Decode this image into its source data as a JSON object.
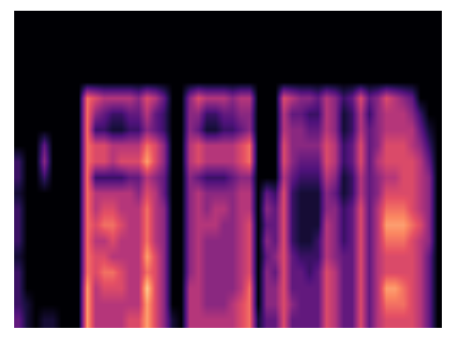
{
  "chart_data": {
    "type": "heatmap",
    "color": "magma",
    "tick_labels": false,
    "zlim": [
      0,
      10
    ],
    "cells": [
      [
        0,
        0,
        0,
        0,
        0,
        0,
        0,
        0,
        0,
        0,
        0,
        0,
        0,
        0,
        0,
        0,
        0,
        0,
        0,
        0,
        0,
        0,
        0,
        0,
        0,
        0,
        0,
        0,
        0,
        0,
        0,
        0,
        0,
        0,
        0,
        0,
        0,
        0,
        0,
        0,
        0,
        0,
        0,
        0,
        0,
        0,
        0,
        0,
        0,
        0
      ],
      [
        0,
        0,
        0,
        0,
        0,
        0,
        0,
        0,
        0,
        0,
        0,
        0,
        0,
        0,
        0,
        0,
        0,
        0,
        0,
        0,
        0,
        0,
        0,
        0,
        0,
        0,
        0,
        0,
        0,
        0,
        0,
        0,
        0,
        0,
        0,
        0,
        0,
        0,
        0,
        0,
        0,
        0,
        0,
        0,
        0,
        0,
        0,
        0,
        0,
        0
      ],
      [
        0,
        0,
        0,
        0,
        0,
        0,
        0,
        0,
        0,
        0,
        0,
        0,
        0,
        0,
        0,
        0,
        0,
        0,
        0,
        0,
        0,
        0,
        0,
        0,
        0,
        0,
        0,
        0,
        0,
        0,
        0,
        0,
        0,
        0,
        0,
        0,
        0,
        0,
        0,
        0,
        0,
        0,
        0,
        0,
        0,
        0,
        0,
        0,
        0,
        0
      ],
      [
        0,
        0,
        0,
        0,
        0,
        0,
        0,
        0,
        0,
        0,
        0,
        0,
        0,
        0,
        0,
        0,
        0,
        0,
        0,
        0,
        0,
        0,
        0,
        0,
        0,
        0,
        0,
        0,
        0,
        0,
        0,
        0,
        0,
        0,
        0,
        0,
        0,
        0,
        0,
        0,
        0,
        0,
        0,
        0,
        0,
        0,
        0,
        0,
        0,
        0
      ],
      [
        0,
        0,
        0,
        0,
        0,
        0,
        0,
        0,
        0,
        0,
        0,
        0,
        0,
        0,
        0,
        0,
        0,
        0,
        0,
        0,
        0,
        0,
        0,
        0,
        0,
        0,
        0,
        0,
        0,
        0,
        0,
        0,
        0,
        0,
        0,
        0,
        0,
        0,
        0,
        0,
        0,
        0,
        0,
        0,
        0,
        0,
        0,
        0,
        0,
        0
      ],
      [
        0,
        0,
        0,
        0,
        0,
        0,
        0,
        0,
        7,
        6,
        5,
        5,
        5,
        5,
        4,
        6,
        5,
        3,
        0,
        0,
        4,
        6,
        5,
        5,
        5,
        4,
        5,
        5,
        0,
        0,
        0,
        6,
        5,
        4,
        4,
        3,
        5,
        4,
        2,
        3,
        6,
        3,
        4,
        6,
        5,
        4,
        3,
        0,
        0,
        0
      ],
      [
        0,
        0,
        0,
        0,
        0,
        0,
        0,
        0,
        7,
        4,
        3,
        2,
        2,
        3,
        3,
        5,
        3,
        2,
        0,
        0,
        4,
        4,
        2,
        2,
        3,
        3,
        4,
        4,
        0,
        0,
        0,
        5,
        3,
        3,
        2,
        2,
        5,
        4,
        1,
        2,
        5,
        2,
        4,
        5,
        5,
        5,
        4,
        2,
        0,
        0
      ],
      [
        0,
        0,
        0,
        0,
        0,
        0,
        0,
        0,
        7,
        2,
        2,
        1,
        1,
        2,
        2,
        4,
        3,
        2,
        0,
        0,
        4,
        3,
        1,
        1,
        2,
        2,
        3,
        4,
        0,
        0,
        0,
        5,
        4,
        4,
        3,
        3,
        5,
        4,
        1,
        2,
        5,
        3,
        4,
        5,
        5,
        5,
        5,
        3,
        1,
        0
      ],
      [
        0,
        0,
        0,
        3,
        0,
        0,
        0,
        0,
        7,
        6,
        6,
        5,
        5,
        5,
        5,
        7,
        6,
        4,
        0,
        0,
        5,
        6,
        5,
        5,
        5,
        5,
        6,
        7,
        0,
        0,
        0,
        6,
        4,
        4,
        4,
        4,
        6,
        5,
        2,
        3,
        6,
        3,
        4,
        6,
        6,
        6,
        5,
        4,
        2,
        0
      ],
      [
        2,
        0,
        0,
        4,
        0,
        0,
        0,
        0,
        7,
        6,
        6,
        5,
        6,
        6,
        6,
        8,
        6,
        4,
        0,
        0,
        5,
        6,
        5,
        5,
        5,
        5,
        6,
        7,
        0,
        0,
        0,
        6,
        4,
        3,
        3,
        3,
        6,
        5,
        2,
        3,
        6,
        3,
        5,
        6,
        6,
        6,
        6,
        5,
        3,
        0
      ],
      [
        2,
        0,
        0,
        2,
        0,
        0,
        0,
        0,
        7,
        2,
        2,
        2,
        2,
        3,
        3,
        5,
        4,
        3,
        0,
        0,
        4,
        3,
        2,
        2,
        2,
        3,
        4,
        4,
        0,
        0,
        0,
        5,
        3,
        2,
        2,
        2,
        5,
        4,
        1,
        2,
        5,
        3,
        4,
        5,
        5,
        6,
        6,
        5,
        4,
        0
      ],
      [
        1,
        0,
        0,
        0,
        0,
        0,
        0,
        0,
        7,
        5,
        5,
        5,
        5,
        5,
        4,
        6,
        5,
        3,
        0,
        0,
        4,
        5,
        4,
        4,
        4,
        4,
        5,
        5,
        0,
        3,
        2,
        6,
        2,
        1,
        1,
        1,
        4,
        3,
        1,
        2,
        5,
        3,
        4,
        6,
        6,
        6,
        6,
        5,
        4,
        0
      ],
      [
        2,
        0,
        0,
        0,
        0,
        0,
        0,
        0,
        7,
        5,
        6,
        6,
        5,
        5,
        5,
        7,
        5,
        4,
        0,
        0,
        4,
        5,
        4,
        5,
        5,
        4,
        5,
        5,
        0,
        4,
        3,
        6,
        2,
        1,
        1,
        1,
        4,
        4,
        2,
        3,
        6,
        3,
        5,
        7,
        7,
        7,
        6,
        5,
        4,
        0
      ],
      [
        2,
        0,
        0,
        0,
        0,
        0,
        0,
        0,
        7,
        6,
        7,
        7,
        6,
        5,
        5,
        7,
        5,
        4,
        0,
        0,
        4,
        5,
        5,
        5,
        4,
        4,
        5,
        6,
        0,
        3,
        3,
        6,
        2,
        1,
        1,
        1,
        5,
        4,
        2,
        3,
        6,
        3,
        5,
        8,
        8,
        8,
        7,
        6,
        4,
        0
      ],
      [
        2,
        0,
        0,
        0,
        0,
        0,
        0,
        0,
        7,
        5,
        5,
        6,
        5,
        5,
        5,
        7,
        5,
        4,
        0,
        0,
        4,
        5,
        4,
        4,
        4,
        4,
        5,
        6,
        0,
        4,
        3,
        6,
        2,
        1,
        1,
        2,
        5,
        4,
        2,
        3,
        6,
        3,
        5,
        7,
        7,
        7,
        6,
        5,
        4,
        0
      ],
      [
        1,
        0,
        0,
        0,
        0,
        0,
        0,
        0,
        7,
        6,
        6,
        5,
        5,
        5,
        5,
        8,
        6,
        4,
        0,
        0,
        4,
        5,
        4,
        4,
        4,
        4,
        5,
        6,
        0,
        3,
        4,
        6,
        3,
        2,
        2,
        2,
        5,
        4,
        3,
        3,
        6,
        3,
        5,
        6,
        6,
        6,
        6,
        5,
        3,
        0
      ],
      [
        2,
        0,
        0,
        0,
        0,
        0,
        0,
        0,
        7,
        6,
        7,
        7,
        6,
        5,
        5,
        7,
        6,
        4,
        0,
        0,
        4,
        5,
        4,
        4,
        4,
        4,
        5,
        6,
        0,
        4,
        3,
        6,
        3,
        3,
        2,
        3,
        6,
        5,
        3,
        3,
        6,
        3,
        5,
        6,
        6,
        6,
        6,
        5,
        3,
        0
      ],
      [
        2,
        0,
        0,
        0,
        0,
        0,
        0,
        0,
        8,
        5,
        6,
        6,
        6,
        5,
        5,
        9,
        6,
        4,
        0,
        0,
        5,
        5,
        4,
        4,
        4,
        4,
        5,
        7,
        0,
        4,
        4,
        6,
        3,
        3,
        3,
        3,
        6,
        5,
        3,
        3,
        6,
        3,
        5,
        8,
        8,
        7,
        6,
        5,
        3,
        0
      ],
      [
        2,
        1,
        0,
        0,
        0,
        0,
        0,
        0,
        8,
        5,
        5,
        5,
        5,
        5,
        5,
        8,
        6,
        4,
        0,
        0,
        5,
        5,
        4,
        4,
        4,
        5,
        6,
        7,
        0,
        4,
        4,
        6,
        4,
        3,
        3,
        3,
        6,
        5,
        3,
        3,
        6,
        3,
        5,
        7,
        7,
        7,
        6,
        5,
        3,
        0
      ],
      [
        3,
        1,
        0,
        1,
        1,
        0,
        0,
        0,
        8,
        5,
        5,
        5,
        5,
        6,
        6,
        8,
        6,
        4,
        1,
        0,
        5,
        5,
        5,
        5,
        5,
        5,
        6,
        7,
        1,
        3,
        3,
        6,
        3,
        3,
        3,
        3,
        6,
        5,
        3,
        3,
        6,
        3,
        5,
        6,
        6,
        6,
        6,
        5,
        3,
        0
      ]
    ]
  }
}
